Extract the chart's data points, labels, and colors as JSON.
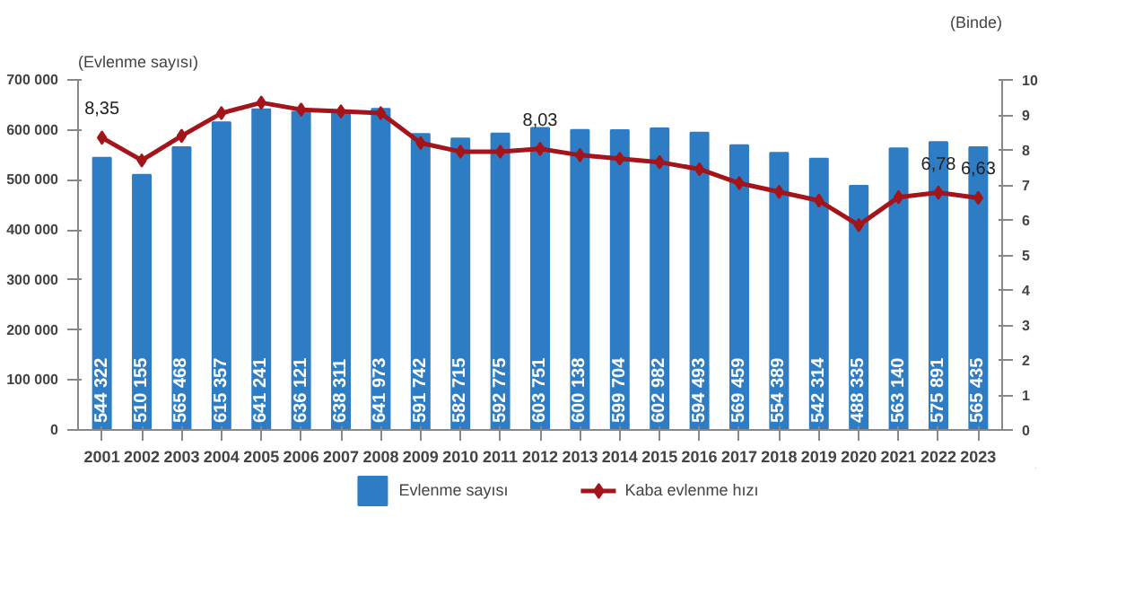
{
  "chart_data": {
    "type": "bar",
    "ylabel": "(Evlenme sayısı)",
    "y2label": "(Binde)",
    "categories": [
      "2001",
      "2002",
      "2003",
      "2004",
      "2005",
      "2006",
      "2007",
      "2008",
      "2009",
      "2010",
      "2011",
      "2012",
      "2013",
      "2014",
      "2015",
      "2016",
      "2017",
      "2018",
      "2019",
      "2020",
      "2021",
      "2022",
      "2023"
    ],
    "series": [
      {
        "name": "Evlenme sayısı",
        "color": "#2e7dc4",
        "values": [
          544322,
          510155,
          565468,
          615357,
          641241,
          636121,
          638311,
          641973,
          591742,
          582715,
          592775,
          603751,
          600138,
          599704,
          602982,
          594493,
          569459,
          554389,
          542314,
          488335,
          563140,
          575891,
          565435
        ],
        "value_labels": [
          "544 322",
          "510 155",
          "565 468",
          "615 357",
          "641 241",
          "636 121",
          "638 311",
          "641 973",
          "591 742",
          "582 715",
          "592 775",
          "603 751",
          "600 138",
          "599 704",
          "602 982",
          "594 493",
          "569 459",
          "554 389",
          "542 314",
          "488 335",
          "563 140",
          "575 891",
          "565 435"
        ]
      },
      {
        "name": "Kaba evlenme hızı",
        "type": "line",
        "axis": "y2",
        "color": "#a3141b",
        "marker": "diamond",
        "values": [
          8.35,
          7.7,
          8.4,
          9.05,
          9.35,
          9.15,
          9.1,
          9.05,
          8.2,
          7.95,
          7.95,
          8.03,
          7.85,
          7.75,
          7.65,
          7.45,
          7.05,
          6.8,
          6.55,
          5.85,
          6.65,
          6.78,
          6.63
        ],
        "value_labels": [
          "8,35",
          null,
          null,
          null,
          null,
          null,
          null,
          null,
          null,
          null,
          null,
          "8,03",
          null,
          null,
          null,
          null,
          null,
          null,
          null,
          null,
          null,
          "6,78",
          "6,63"
        ]
      }
    ],
    "ylim": [
      0,
      700000
    ],
    "yticks": [
      {
        "value": 0,
        "label": "0"
      },
      {
        "value": 100000,
        "label": "100 000"
      },
      {
        "value": 200000,
        "label": "200 000"
      },
      {
        "value": 300000,
        "label": "300 000"
      },
      {
        "value": 400000,
        "label": "400 000"
      },
      {
        "value": 500000,
        "label": "500 000"
      },
      {
        "value": 600000,
        "label": "600 000"
      },
      {
        "value": 700000,
        "label": "700 000"
      }
    ],
    "y2lim": [
      0,
      10
    ],
    "y2ticks": [
      0,
      1,
      2,
      3,
      4,
      5,
      6,
      7,
      8,
      9,
      10
    ],
    "legend": "bottom",
    "grid": false
  }
}
